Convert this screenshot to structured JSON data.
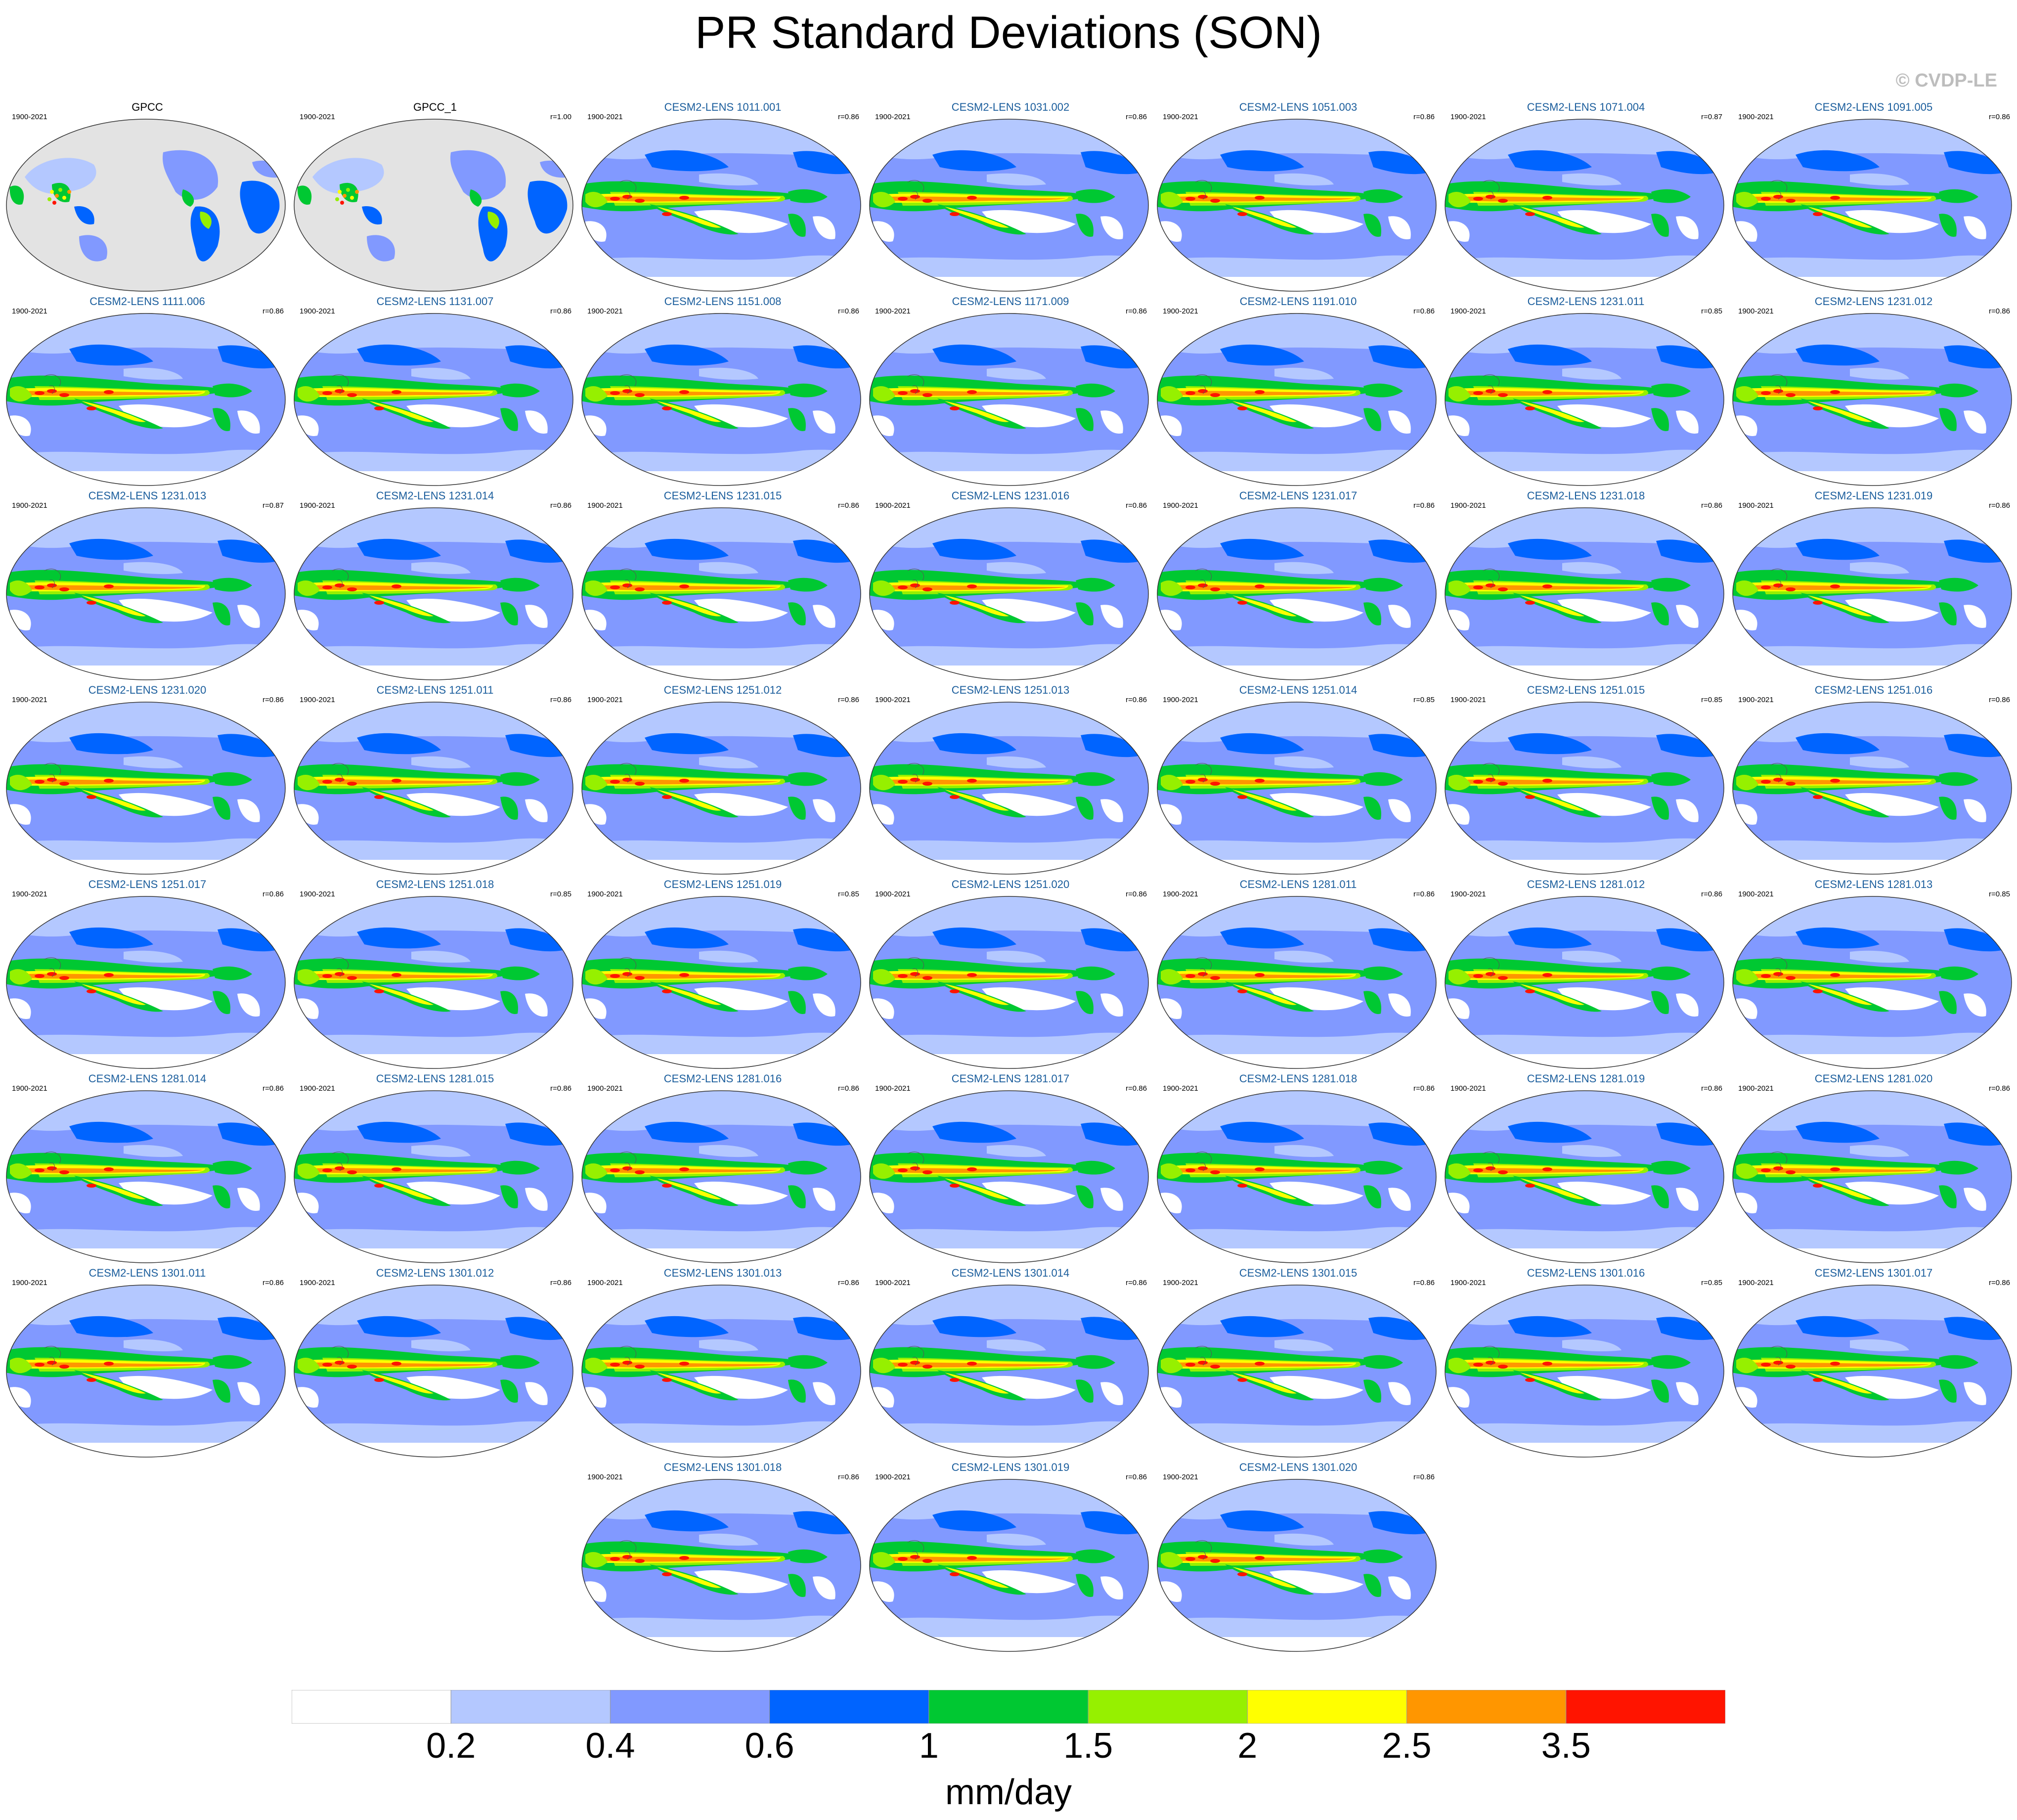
{
  "title": "PR Standard Deviations (SON)",
  "credit": "© CVDP-LE",
  "colorbar": {
    "colors": [
      "#ffffff",
      "#b4c8ff",
      "#8199ff",
      "#0064ff",
      "#00c832",
      "#96f000",
      "#ffff00",
      "#ff9600",
      "#ff1400"
    ],
    "tick_labels": [
      "0.2",
      "0.4",
      "0.6",
      "1",
      "1.5",
      "2",
      "2.5",
      "3.5"
    ],
    "units": "mm/day"
  },
  "panels": [
    {
      "title": "GPCC",
      "years": "1900-2021",
      "corr": "",
      "kind": "obs"
    },
    {
      "title": "GPCC_1",
      "years": "1900-2021",
      "corr": "r=1.00",
      "kind": "obs"
    },
    {
      "title": "CESM2-LENS 1011.001",
      "years": "1900-2021",
      "corr": "r=0.86",
      "kind": "model"
    },
    {
      "title": "CESM2-LENS 1031.002",
      "years": "1900-2021",
      "corr": "r=0.86",
      "kind": "model"
    },
    {
      "title": "CESM2-LENS 1051.003",
      "years": "1900-2021",
      "corr": "r=0.86",
      "kind": "model"
    },
    {
      "title": "CESM2-LENS 1071.004",
      "years": "1900-2021",
      "corr": "r=0.87",
      "kind": "model"
    },
    {
      "title": "CESM2-LENS 1091.005",
      "years": "1900-2021",
      "corr": "r=0.86",
      "kind": "model"
    },
    {
      "title": "CESM2-LENS 1111.006",
      "years": "1900-2021",
      "corr": "r=0.86",
      "kind": "model"
    },
    {
      "title": "CESM2-LENS 1131.007",
      "years": "1900-2021",
      "corr": "r=0.86",
      "kind": "model"
    },
    {
      "title": "CESM2-LENS 1151.008",
      "years": "1900-2021",
      "corr": "r=0.86",
      "kind": "model"
    },
    {
      "title": "CESM2-LENS 1171.009",
      "years": "1900-2021",
      "corr": "r=0.86",
      "kind": "model"
    },
    {
      "title": "CESM2-LENS 1191.010",
      "years": "1900-2021",
      "corr": "r=0.86",
      "kind": "model"
    },
    {
      "title": "CESM2-LENS 1231.011",
      "years": "1900-2021",
      "corr": "r=0.85",
      "kind": "model"
    },
    {
      "title": "CESM2-LENS 1231.012",
      "years": "1900-2021",
      "corr": "r=0.86",
      "kind": "model"
    },
    {
      "title": "CESM2-LENS 1231.013",
      "years": "1900-2021",
      "corr": "r=0.87",
      "kind": "model"
    },
    {
      "title": "CESM2-LENS 1231.014",
      "years": "1900-2021",
      "corr": "r=0.86",
      "kind": "model"
    },
    {
      "title": "CESM2-LENS 1231.015",
      "years": "1900-2021",
      "corr": "r=0.86",
      "kind": "model"
    },
    {
      "title": "CESM2-LENS 1231.016",
      "years": "1900-2021",
      "corr": "r=0.86",
      "kind": "model"
    },
    {
      "title": "CESM2-LENS 1231.017",
      "years": "1900-2021",
      "corr": "r=0.86",
      "kind": "model"
    },
    {
      "title": "CESM2-LENS 1231.018",
      "years": "1900-2021",
      "corr": "r=0.86",
      "kind": "model"
    },
    {
      "title": "CESM2-LENS 1231.019",
      "years": "1900-2021",
      "corr": "r=0.86",
      "kind": "model"
    },
    {
      "title": "CESM2-LENS 1231.020",
      "years": "1900-2021",
      "corr": "r=0.86",
      "kind": "model"
    },
    {
      "title": "CESM2-LENS 1251.011",
      "years": "1900-2021",
      "corr": "r=0.86",
      "kind": "model"
    },
    {
      "title": "CESM2-LENS 1251.012",
      "years": "1900-2021",
      "corr": "r=0.86",
      "kind": "model"
    },
    {
      "title": "CESM2-LENS 1251.013",
      "years": "1900-2021",
      "corr": "r=0.86",
      "kind": "model"
    },
    {
      "title": "CESM2-LENS 1251.014",
      "years": "1900-2021",
      "corr": "r=0.85",
      "kind": "model"
    },
    {
      "title": "CESM2-LENS 1251.015",
      "years": "1900-2021",
      "corr": "r=0.85",
      "kind": "model"
    },
    {
      "title": "CESM2-LENS 1251.016",
      "years": "1900-2021",
      "corr": "r=0.86",
      "kind": "model"
    },
    {
      "title": "CESM2-LENS 1251.017",
      "years": "1900-2021",
      "corr": "r=0.86",
      "kind": "model"
    },
    {
      "title": "CESM2-LENS 1251.018",
      "years": "1900-2021",
      "corr": "r=0.85",
      "kind": "model"
    },
    {
      "title": "CESM2-LENS 1251.019",
      "years": "1900-2021",
      "corr": "r=0.85",
      "kind": "model"
    },
    {
      "title": "CESM2-LENS 1251.020",
      "years": "1900-2021",
      "corr": "r=0.86",
      "kind": "model"
    },
    {
      "title": "CESM2-LENS 1281.011",
      "years": "1900-2021",
      "corr": "r=0.86",
      "kind": "model"
    },
    {
      "title": "CESM2-LENS 1281.012",
      "years": "1900-2021",
      "corr": "r=0.86",
      "kind": "model"
    },
    {
      "title": "CESM2-LENS 1281.013",
      "years": "1900-2021",
      "corr": "r=0.85",
      "kind": "model"
    },
    {
      "title": "CESM2-LENS 1281.014",
      "years": "1900-2021",
      "corr": "r=0.86",
      "kind": "model"
    },
    {
      "title": "CESM2-LENS 1281.015",
      "years": "1900-2021",
      "corr": "r=0.86",
      "kind": "model"
    },
    {
      "title": "CESM2-LENS 1281.016",
      "years": "1900-2021",
      "corr": "r=0.86",
      "kind": "model"
    },
    {
      "title": "CESM2-LENS 1281.017",
      "years": "1900-2021",
      "corr": "r=0.86",
      "kind": "model"
    },
    {
      "title": "CESM2-LENS 1281.018",
      "years": "1900-2021",
      "corr": "r=0.86",
      "kind": "model"
    },
    {
      "title": "CESM2-LENS 1281.019",
      "years": "1900-2021",
      "corr": "r=0.86",
      "kind": "model"
    },
    {
      "title": "CESM2-LENS 1281.020",
      "years": "1900-2021",
      "corr": "r=0.86",
      "kind": "model"
    },
    {
      "title": "CESM2-LENS 1301.011",
      "years": "1900-2021",
      "corr": "r=0.86",
      "kind": "model"
    },
    {
      "title": "CESM2-LENS 1301.012",
      "years": "1900-2021",
      "corr": "r=0.86",
      "kind": "model"
    },
    {
      "title": "CESM2-LENS 1301.013",
      "years": "1900-2021",
      "corr": "r=0.86",
      "kind": "model"
    },
    {
      "title": "CESM2-LENS 1301.014",
      "years": "1900-2021",
      "corr": "r=0.86",
      "kind": "model"
    },
    {
      "title": "CESM2-LENS 1301.015",
      "years": "1900-2021",
      "corr": "r=0.86",
      "kind": "model"
    },
    {
      "title": "CESM2-LENS 1301.016",
      "years": "1900-2021",
      "corr": "r=0.85",
      "kind": "model"
    },
    {
      "title": "CESM2-LENS 1301.017",
      "years": "1900-2021",
      "corr": "r=0.86",
      "kind": "model"
    },
    {
      "title": "CESM2-LENS 1301.018",
      "years": "1900-2021",
      "corr": "r=0.86",
      "kind": "model"
    },
    {
      "title": "CESM2-LENS 1301.019",
      "years": "1900-2021",
      "corr": "r=0.86",
      "kind": "model"
    },
    {
      "title": "CESM2-LENS 1301.020",
      "years": "1900-2021",
      "corr": "r=0.86",
      "kind": "model"
    }
  ]
}
